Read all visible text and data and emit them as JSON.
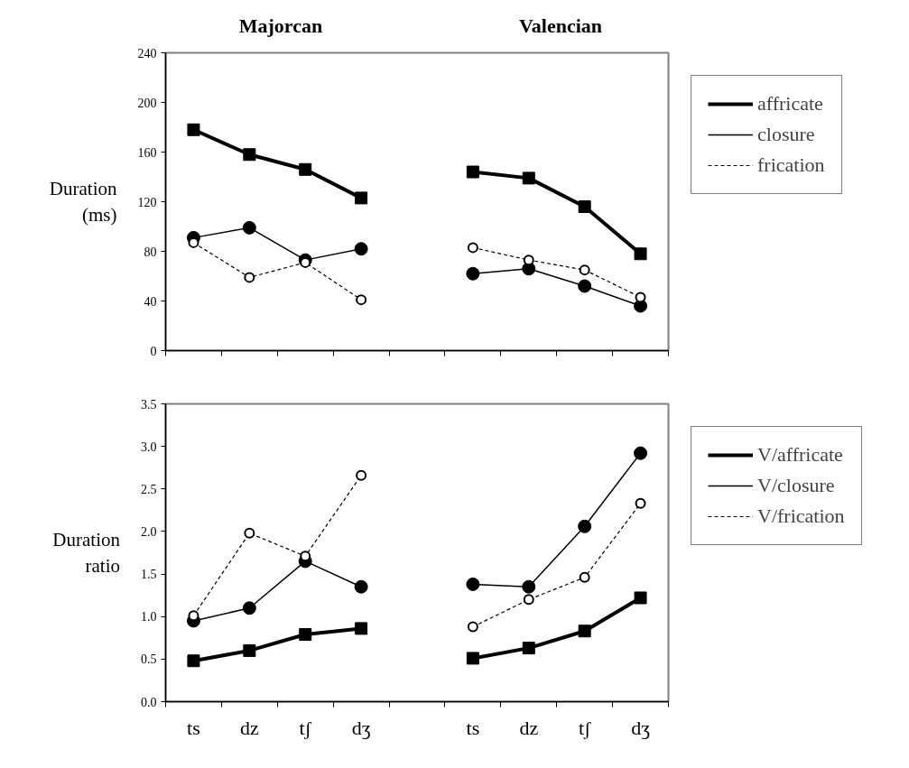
{
  "chart_data": [
    {
      "type": "line",
      "ylabel": "Duration (ms)",
      "annotations": [
        "Majorcan",
        "Valencian"
      ],
      "categories": [
        null,
        null,
        null,
        null,
        null,
        null,
        null,
        null,
        null
      ],
      "tick_labels": "y",
      "ylim": [
        0,
        240
      ],
      "yticks": [
        0,
        40,
        80,
        120,
        160,
        200,
        240
      ],
      "grid": false,
      "legend": "right",
      "series": [
        {
          "name": "affricate",
          "color": "#000000",
          "marker": "square",
          "line_style": "solid",
          "values": [
            178,
            158,
            146,
            123,
            null,
            144,
            139,
            116,
            78
          ]
        },
        {
          "name": "closure",
          "color": "#000000",
          "marker": "circle",
          "line_style": "solid",
          "values": [
            91,
            99,
            73,
            82,
            null,
            62,
            66,
            52,
            36
          ]
        },
        {
          "name": "frication",
          "color": "#000000",
          "marker": "circle",
          "line_style": "dashed",
          "values": [
            87,
            59,
            71,
            41,
            null,
            83,
            73,
            65,
            43
          ]
        }
      ]
    },
    {
      "type": "line",
      "ylabel": "Duration ratio",
      "categories": [
        "ts",
        "dz",
        "tʃ",
        "dʒ",
        null,
        "ts",
        "dz",
        "tʃ",
        "dʒ"
      ],
      "ylim": [
        0,
        3.5
      ],
      "yticks": [
        {
          "value": 0,
          "label": "0.0"
        },
        0.5,
        {
          "value": 1,
          "label": "1.0"
        },
        1.5,
        {
          "value": 2,
          "label": "2.0"
        },
        2.5,
        {
          "value": 3,
          "label": "3.0"
        },
        3.5
      ],
      "grid": false,
      "legend": "right",
      "series": [
        {
          "name": "V/affricate",
          "color": "#000000",
          "marker": "square",
          "line_style": "solid",
          "values": [
            0.48,
            0.6,
            0.79,
            0.86,
            null,
            0.51,
            0.63,
            0.83,
            1.22
          ]
        },
        {
          "name": "V/closure",
          "color": "#000000",
          "marker": "circle",
          "line_style": "solid",
          "values": [
            0.95,
            1.1,
            1.65,
            1.35,
            null,
            1.38,
            1.35,
            2.06,
            2.92
          ]
        },
        {
          "name": "V/frication",
          "color": "#000000",
          "marker": "circle",
          "line_style": "dashed",
          "values": [
            1.01,
            1.98,
            1.71,
            2.66,
            null,
            0.88,
            1.2,
            1.46,
            2.33
          ]
        }
      ]
    }
  ]
}
